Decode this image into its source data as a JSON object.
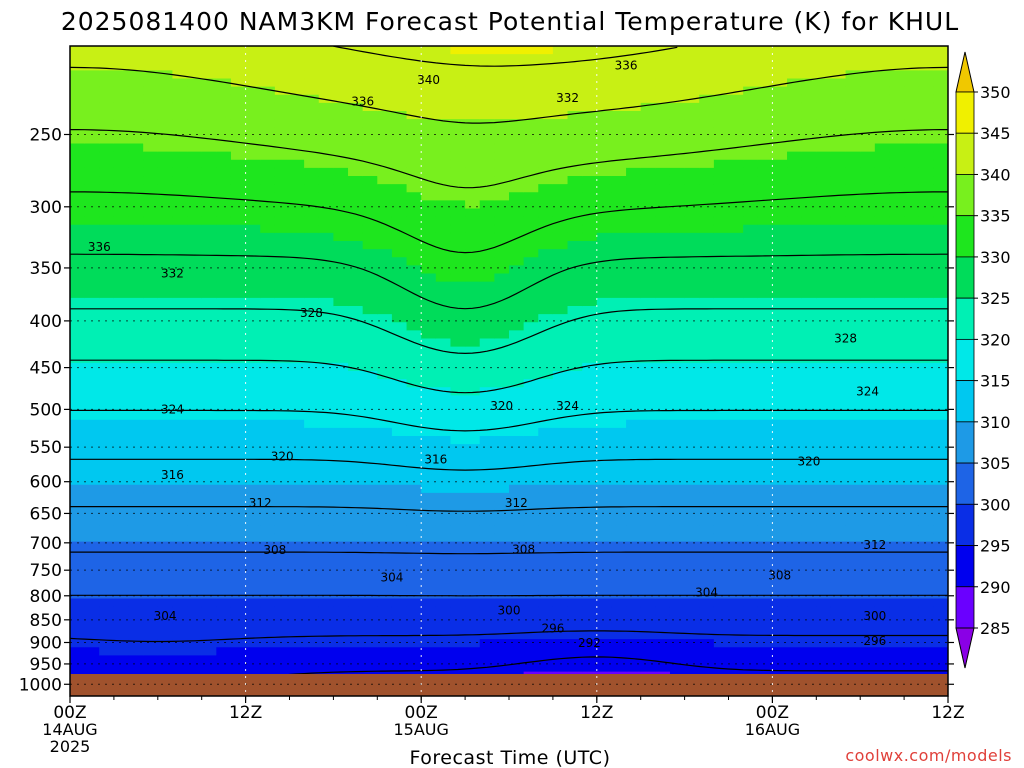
{
  "chart_data": {
    "type": "heatmap",
    "title": "2025081400 NAM3KM Forecast Potential Temperature (K) for KHUL",
    "xlabel": "Forecast Time (UTC)",
    "ylabel": "",
    "credit": "coolwx.com/models",
    "x_ticks": [
      {
        "label": "00Z",
        "hours": 0,
        "date": "14AUG",
        "year": "2025"
      },
      {
        "label": "12Z",
        "hours": 12,
        "date": "",
        "year": ""
      },
      {
        "label": "00Z",
        "hours": 24,
        "date": "15AUG",
        "year": ""
      },
      {
        "label": "12Z",
        "hours": 36,
        "date": "",
        "year": ""
      },
      {
        "label": "00Z",
        "hours": 48,
        "date": "16AUG",
        "year": ""
      },
      {
        "label": "12Z",
        "hours": 60,
        "date": "",
        "year": ""
      }
    ],
    "xlim": [
      0,
      60
    ],
    "y_scale": "log-pressure",
    "ylim": [
      1030,
      200
    ],
    "y_ticks": [
      250,
      300,
      350,
      400,
      450,
      500,
      550,
      600,
      650,
      700,
      750,
      800,
      850,
      900,
      950,
      1000
    ],
    "colorbar": {
      "levels": [
        285,
        290,
        295,
        300,
        305,
        310,
        315,
        320,
        325,
        330,
        335,
        340,
        345,
        350
      ],
      "colors": [
        "#8a00e6",
        "#6a00ff",
        "#0000ee",
        "#0a2ee6",
        "#1e64e6",
        "#1e9ae6",
        "#00c8f0",
        "#00e8e8",
        "#00f0b4",
        "#00dc5a",
        "#1ee61e",
        "#78f01e",
        "#c8f014",
        "#f0f000",
        "#f0c800"
      ]
    },
    "contour_labels": [
      {
        "text": "340",
        "hours": 24.5,
        "p": 218
      },
      {
        "text": "336",
        "hours": 38,
        "p": 210
      },
      {
        "text": "336",
        "hours": 2,
        "p": 332
      },
      {
        "text": "336",
        "hours": 20,
        "p": 230
      },
      {
        "text": "332",
        "hours": 34,
        "p": 228
      },
      {
        "text": "332",
        "hours": 7,
        "p": 355
      },
      {
        "text": "328",
        "hours": 16.5,
        "p": 392
      },
      {
        "text": "328",
        "hours": 53,
        "p": 418
      },
      {
        "text": "324",
        "hours": 7,
        "p": 500
      },
      {
        "text": "324",
        "hours": 34,
        "p": 496
      },
      {
        "text": "324",
        "hours": 54.5,
        "p": 478
      },
      {
        "text": "320",
        "hours": 14.5,
        "p": 563
      },
      {
        "text": "320",
        "hours": 29.5,
        "p": 496
      },
      {
        "text": "320",
        "hours": 50.5,
        "p": 570
      },
      {
        "text": "316",
        "hours": 7,
        "p": 590
      },
      {
        "text": "316",
        "hours": 25,
        "p": 567
      },
      {
        "text": "312",
        "hours": 13,
        "p": 633
      },
      {
        "text": "312",
        "hours": 30.5,
        "p": 633
      },
      {
        "text": "312",
        "hours": 55,
        "p": 704
      },
      {
        "text": "308",
        "hours": 14,
        "p": 713
      },
      {
        "text": "308",
        "hours": 31,
        "p": 712
      },
      {
        "text": "308",
        "hours": 48.5,
        "p": 760
      },
      {
        "text": "304",
        "hours": 6.5,
        "p": 842
      },
      {
        "text": "304",
        "hours": 22,
        "p": 764
      },
      {
        "text": "304",
        "hours": 43.5,
        "p": 793
      },
      {
        "text": "300",
        "hours": 30,
        "p": 830
      },
      {
        "text": "300",
        "hours": 55,
        "p": 842
      },
      {
        "text": "296",
        "hours": 33,
        "p": 869
      },
      {
        "text": "296",
        "hours": 55,
        "p": 897
      },
      {
        "text": "292",
        "hours": 35.5,
        "p": 901
      }
    ]
  }
}
